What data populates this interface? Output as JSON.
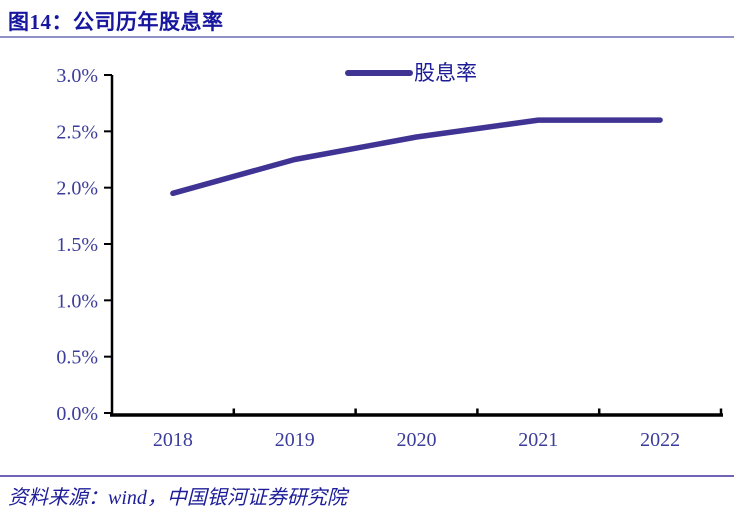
{
  "figure": {
    "title": "图14：公司历年股息率",
    "source": "资料来源：wind，中国银河证券研究院"
  },
  "chart_data": {
    "type": "line",
    "title": "图14：公司历年股息率",
    "categories": [
      "2018",
      "2019",
      "2020",
      "2021",
      "2022"
    ],
    "series": [
      {
        "name": "股息率",
        "values": [
          1.95,
          2.25,
          2.45,
          2.6,
          2.6
        ]
      }
    ],
    "xlabel": "",
    "ylabel": "",
    "ylim": [
      0,
      3.0
    ],
    "ytick_step": 0.5,
    "ytick_suffix": "%",
    "grid": false,
    "legend_position": "top-center",
    "colors": {
      "series_line": "#3f3494",
      "axis_line": "#000000",
      "tick_label": "#3c3c9b",
      "legend_text": "#1c1c96",
      "title": "#16169f",
      "source_text": "#1d1d99",
      "divider_top": "#9191c8",
      "divider_bottom": "#6f64b8"
    }
  }
}
